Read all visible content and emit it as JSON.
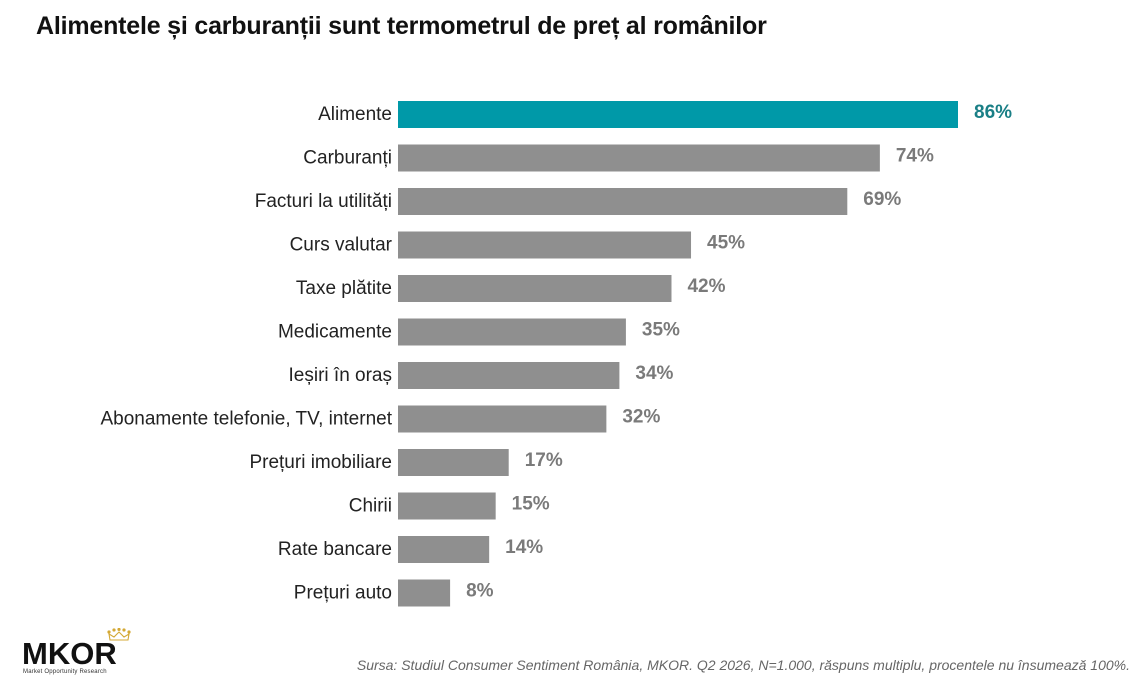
{
  "chart_data": {
    "type": "bar",
    "orientation": "horizontal",
    "title": "Alimentele și carburanții sunt termometrul de preț al românilor",
    "categories": [
      "Alimente",
      "Carburanți",
      "Facturi la utilități",
      "Curs valutar",
      "Taxe plătite",
      "Medicamente",
      "Ieșiri în oraș",
      "Abonamente telefonie, TV, internet",
      "Prețuri imobiliare",
      "Chirii",
      "Rate bancare",
      "Prețuri auto"
    ],
    "values": [
      86,
      74,
      69,
      45,
      42,
      35,
      34,
      32,
      17,
      15,
      14,
      8
    ],
    "value_labels": [
      "86%",
      "74%",
      "69%",
      "45%",
      "42%",
      "35%",
      "34%",
      "32%",
      "17%",
      "15%",
      "14%",
      "8%"
    ],
    "unit": "%",
    "highlight_index": 0,
    "colors": {
      "highlight_bar": "#0099a8",
      "highlight_label": "#1a7f86",
      "bar": "#8f8f8f",
      "label": "#7a7a7a"
    },
    "xlim": [
      0,
      86
    ],
    "grid": false,
    "legend": "none"
  },
  "footer": {
    "logo_text": "MKOR",
    "logo_subtext": "Market Opportunity Research",
    "source": "Sursa: Studiul Consumer Sentiment România, MKOR. Q2 2026, N=1.000, răspuns multiplu, procentele nu însumează 100%."
  }
}
